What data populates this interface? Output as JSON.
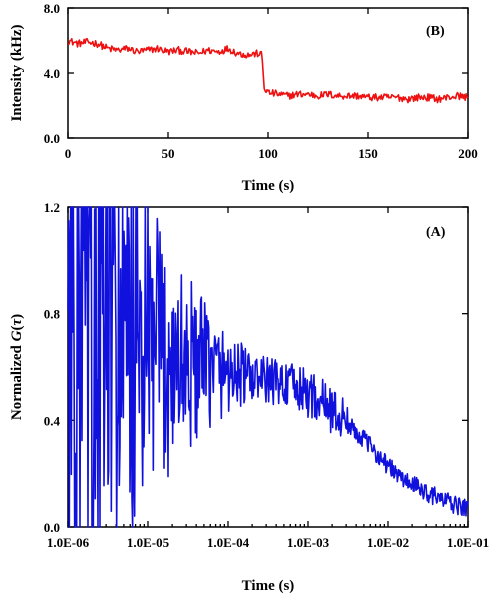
{
  "chart_data": [
    {
      "id": "B",
      "type": "line",
      "panel_label": "(B)",
      "title": "",
      "xlabel": "Time (s)",
      "ylabel": "Intensity (kHz)",
      "xlim": [
        0,
        200
      ],
      "ylim": [
        0,
        8
      ],
      "x_ticks": [
        0,
        50,
        100,
        150,
        200
      ],
      "y_ticks": [
        0,
        4,
        8
      ],
      "x_tick_labels": [
        "0",
        "50",
        "100",
        "150",
        "200"
      ],
      "y_tick_labels": [
        "0.0",
        "4.0",
        "8.0"
      ],
      "series": [
        {
          "color": "#ee1111",
          "x": [
            0,
            5,
            10,
            15,
            20,
            25,
            30,
            35,
            40,
            45,
            50,
            55,
            60,
            65,
            70,
            75,
            80,
            85,
            90,
            95,
            97,
            98,
            100,
            105,
            110,
            115,
            120,
            125,
            130,
            135,
            140,
            145,
            150,
            155,
            160,
            165,
            170,
            175,
            180,
            185,
            190,
            195,
            200
          ],
          "y": [
            6.0,
            5.8,
            5.9,
            5.8,
            5.5,
            5.4,
            5.5,
            5.3,
            5.4,
            5.5,
            5.3,
            5.4,
            5.3,
            5.2,
            5.4,
            5.3,
            5.5,
            5.2,
            5.1,
            5.2,
            5.1,
            3.1,
            2.8,
            2.7,
            2.6,
            2.7,
            2.7,
            2.6,
            2.7,
            2.6,
            2.6,
            2.6,
            2.5,
            2.5,
            2.5,
            2.5,
            2.4,
            2.5,
            2.5,
            2.4,
            2.5,
            2.6,
            2.5
          ]
        }
      ]
    },
    {
      "id": "A",
      "type": "line",
      "panel_label": "(A)",
      "title": "",
      "xlabel": "Time (s)",
      "ylabel_prefix": "Normalized ",
      "ylabel_italic": "G",
      "ylabel_paren_open": "(",
      "ylabel_tau": "τ",
      "ylabel_paren_close": ")",
      "x_scale": "log",
      "xlim": [
        1e-06,
        0.1
      ],
      "ylim": [
        0,
        1.2
      ],
      "x_ticks": [
        1e-06,
        1e-05,
        0.0001,
        0.001,
        0.01,
        0.1
      ],
      "y_ticks": [
        0,
        0.4,
        0.8,
        1.2
      ],
      "x_tick_labels": [
        "1.0E-06",
        "1.0E-05",
        "1.0E-04",
        "1.0E-03",
        "1.0E-02",
        "1.0E-01"
      ],
      "y_tick_labels": [
        "0.0",
        "0.4",
        "0.8",
        "1.2"
      ],
      "series": [
        {
          "color": "#1111dd",
          "x": [
            1e-06,
            1.3e-06,
            1.7e-06,
            2.2e-06,
            3e-06,
            4e-06,
            5e-06,
            7e-06,
            1e-05,
            1.5e-05,
            2e-05,
            3e-05,
            5e-05,
            7e-05,
            0.0001,
            0.00015,
            0.0002,
            0.0003,
            0.0005,
            0.0007,
            0.001,
            0.0015,
            0.002,
            0.003,
            0.005,
            0.007,
            0.01,
            0.015,
            0.02,
            0.03,
            0.05,
            0.07,
            0.1
          ],
          "y": [
            0.78,
            0.75,
            0.72,
            0.7,
            0.68,
            0.67,
            0.66,
            0.65,
            0.64,
            0.63,
            0.62,
            0.61,
            0.6,
            0.59,
            0.58,
            0.57,
            0.56,
            0.55,
            0.54,
            0.52,
            0.5,
            0.47,
            0.44,
            0.39,
            0.33,
            0.28,
            0.23,
            0.18,
            0.16,
            0.13,
            0.1,
            0.08,
            0.07
          ]
        }
      ]
    }
  ]
}
